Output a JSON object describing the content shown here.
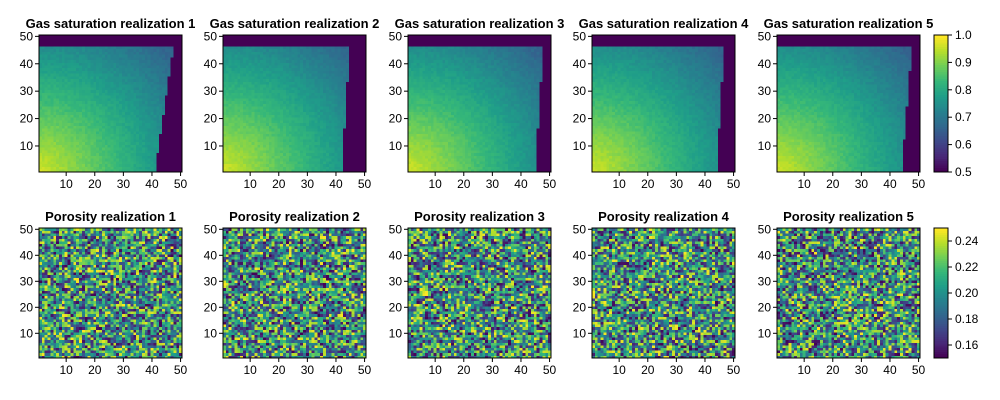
{
  "chart_data": [
    {
      "type": "heatmap",
      "row": "saturation",
      "colorbar": {
        "ticks": [
          0.5,
          0.6,
          0.7,
          0.8,
          0.9,
          1.0
        ],
        "range": [
          0.5,
          1.0
        ],
        "colormap": "viridis"
      },
      "panels": [
        {
          "title": "Gas saturation realization 1",
          "front_lo": 41,
          "front_hi": 48
        },
        {
          "title": "Gas saturation realization 2",
          "front_lo": 42,
          "front_hi": 45
        },
        {
          "title": "Gas saturation realization 3",
          "front_lo": 45,
          "front_hi": 48
        },
        {
          "title": "Gas saturation realization 4",
          "front_lo": 44,
          "front_hi": 47
        },
        {
          "title": "Gas saturation realization 5",
          "front_lo": 44,
          "front_hi": 48
        }
      ],
      "xticks": [
        10,
        20,
        30,
        40,
        50
      ],
      "yticks": [
        10,
        20,
        30,
        40,
        50
      ],
      "xlim": [
        0.5,
        50.5
      ],
      "ylim": [
        0.5,
        50.5
      ],
      "grid_cells": 50
    },
    {
      "type": "heatmap",
      "row": "porosity",
      "colorbar": {
        "ticks": [
          0.16,
          0.18,
          0.2,
          0.22,
          0.24
        ],
        "range": [
          0.15,
          0.25
        ],
        "colormap": "viridis"
      },
      "panels": [
        {
          "title": "Porosity realization 1"
        },
        {
          "title": "Porosity realization 2"
        },
        {
          "title": "Porosity realization 3"
        },
        {
          "title": "Porosity realization 4"
        },
        {
          "title": "Porosity realization 5"
        }
      ],
      "xticks": [
        10,
        20,
        30,
        40,
        50
      ],
      "yticks": [
        10,
        20,
        30,
        40,
        50
      ],
      "xlim": [
        0.5,
        50.5
      ],
      "ylim": [
        0.5,
        50.5
      ],
      "grid_cells": 50
    }
  ]
}
